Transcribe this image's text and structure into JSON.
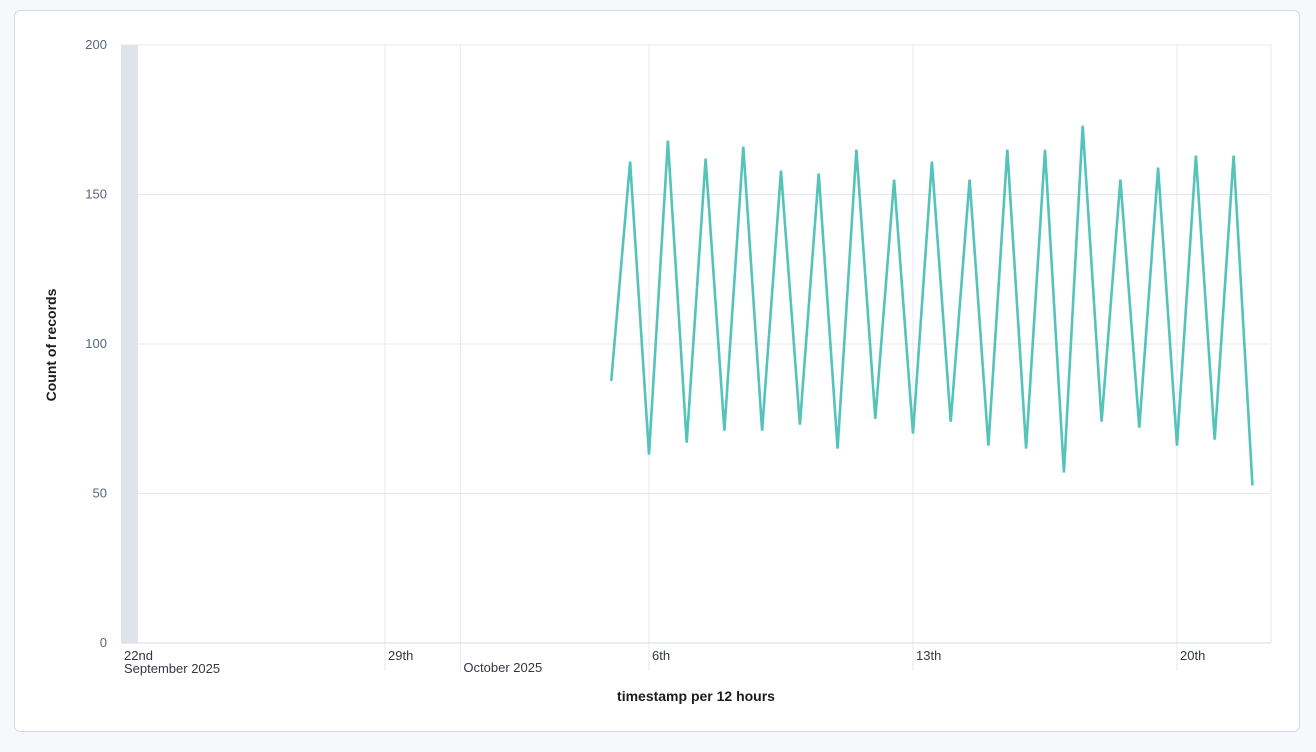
{
  "chart_data": {
    "type": "line",
    "title": "",
    "xlabel": "timestamp per 12 hours",
    "ylabel": "Count of records",
    "ylim": [
      0,
      200
    ],
    "y_ticks": [
      0,
      50,
      100,
      150,
      200
    ],
    "x_ticks": [
      {
        "date": "2025-09-22",
        "label": "22nd",
        "sublabel": "September 2025"
      },
      {
        "date": "2025-09-29",
        "label": "29th",
        "sublabel": ""
      },
      {
        "date": "2025-10-01",
        "label": "",
        "sublabel": "October 2025"
      },
      {
        "date": "2025-10-06",
        "label": "6th",
        "sublabel": ""
      },
      {
        "date": "2025-10-13",
        "label": "13th",
        "sublabel": ""
      },
      {
        "date": "2025-10-20",
        "label": "20th",
        "sublabel": ""
      }
    ],
    "xlim": [
      "2025-09-22T00:00",
      "2025-10-21T12:00"
    ],
    "shaded_region": {
      "start": "2025-09-22T00:00",
      "end": "2025-09-22T12:00",
      "color": "#dfe3ea"
    },
    "grid": true,
    "series": [
      {
        "color": "#54c3b9",
        "points": [
          {
            "x": "2025-10-05T00:00",
            "y": 88
          },
          {
            "x": "2025-10-05T12:00",
            "y": 161
          },
          {
            "x": "2025-10-06T00:00",
            "y": 63
          },
          {
            "x": "2025-10-06T12:00",
            "y": 168
          },
          {
            "x": "2025-10-07T00:00",
            "y": 67
          },
          {
            "x": "2025-10-07T12:00",
            "y": 162
          },
          {
            "x": "2025-10-08T00:00",
            "y": 71
          },
          {
            "x": "2025-10-08T12:00",
            "y": 166
          },
          {
            "x": "2025-10-09T00:00",
            "y": 71
          },
          {
            "x": "2025-10-09T12:00",
            "y": 158
          },
          {
            "x": "2025-10-10T00:00",
            "y": 73
          },
          {
            "x": "2025-10-10T12:00",
            "y": 157
          },
          {
            "x": "2025-10-11T00:00",
            "y": 65
          },
          {
            "x": "2025-10-11T12:00",
            "y": 165
          },
          {
            "x": "2025-10-12T00:00",
            "y": 75
          },
          {
            "x": "2025-10-12T12:00",
            "y": 155
          },
          {
            "x": "2025-10-13T00:00",
            "y": 70
          },
          {
            "x": "2025-10-13T12:00",
            "y": 161
          },
          {
            "x": "2025-10-14T00:00",
            "y": 74
          },
          {
            "x": "2025-10-14T12:00",
            "y": 155
          },
          {
            "x": "2025-10-15T00:00",
            "y": 66
          },
          {
            "x": "2025-10-15T12:00",
            "y": 165
          },
          {
            "x": "2025-10-16T00:00",
            "y": 65
          },
          {
            "x": "2025-10-16T12:00",
            "y": 165
          },
          {
            "x": "2025-10-17T00:00",
            "y": 57
          },
          {
            "x": "2025-10-17T12:00",
            "y": 173
          },
          {
            "x": "2025-10-18T00:00",
            "y": 74
          },
          {
            "x": "2025-10-18T12:00",
            "y": 155
          },
          {
            "x": "2025-10-19T00:00",
            "y": 72
          },
          {
            "x": "2025-10-19T12:00",
            "y": 159
          },
          {
            "x": "2025-10-20T00:00",
            "y": 66
          },
          {
            "x": "2025-10-20T12:00",
            "y": 163
          },
          {
            "x": "2025-10-21T00:00",
            "y": 68
          },
          {
            "x": "2025-10-21T12:00",
            "y": 163
          },
          {
            "x": "2025-10-22T00:00",
            "y": 53
          }
        ]
      }
    ]
  }
}
